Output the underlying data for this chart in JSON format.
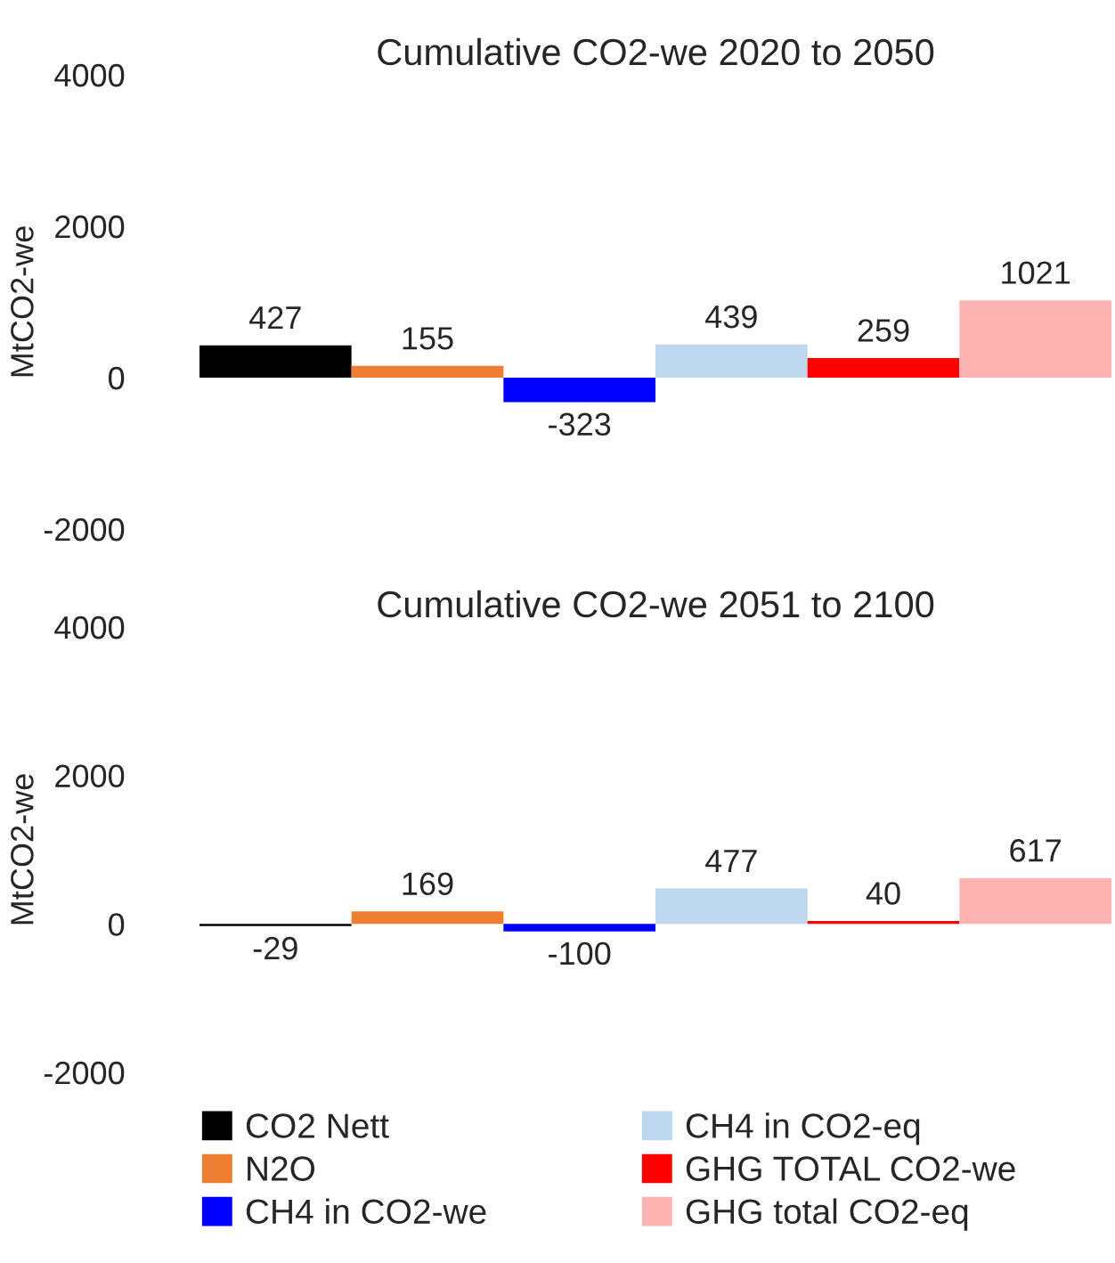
{
  "chart_data": [
    {
      "type": "bar",
      "title": "Cumulative CO2-we 2020 to 2050",
      "ylabel": "MtCO2-we",
      "categories": [
        null
      ],
      "ylim": [
        -2000,
        4000
      ],
      "yticks": [
        -2000,
        0,
        2000,
        4000
      ],
      "tick_labels": "y",
      "data_labels": true,
      "series": [
        {
          "color": "#000000",
          "values": [
            427
          ]
        },
        {
          "color": "#ed7d31",
          "values": [
            155
          ]
        },
        {
          "color": "#0000ff",
          "values": [
            -323
          ]
        },
        {
          "color": "#bdd7ee",
          "values": [
            439
          ]
        },
        {
          "color": "#ff0000",
          "values": [
            259
          ]
        },
        {
          "color": "#ffb3b3",
          "values": [
            1021
          ]
        }
      ]
    },
    {
      "type": "bar",
      "title": "Cumulative CO2-we 2051 to 2100",
      "ylabel": "MtCO2-we",
      "categories": [
        null
      ],
      "ylim": [
        -2000,
        4000
      ],
      "yticks": [
        -2000,
        0,
        2000,
        4000
      ],
      "tick_labels": "y",
      "data_labels": true,
      "legend": "bottom",
      "series": [
        {
          "name": "CO2 Nett",
          "color": "#000000",
          "values": [
            -29
          ]
        },
        {
          "name": "N2O",
          "color": "#ed7d31",
          "values": [
            169
          ]
        },
        {
          "name": "CH4 in CO2-we",
          "color": "#0000ff",
          "values": [
            -100
          ]
        },
        {
          "name": "CH4 in CO2-eq",
          "color": "#bdd7ee",
          "values": [
            477
          ]
        },
        {
          "name": "GHG TOTAL CO2-we",
          "color": "#ff0000",
          "values": [
            40
          ]
        },
        {
          "name": "GHG total CO2-eq",
          "color": "#ffb3b3",
          "values": [
            617
          ]
        }
      ]
    }
  ]
}
